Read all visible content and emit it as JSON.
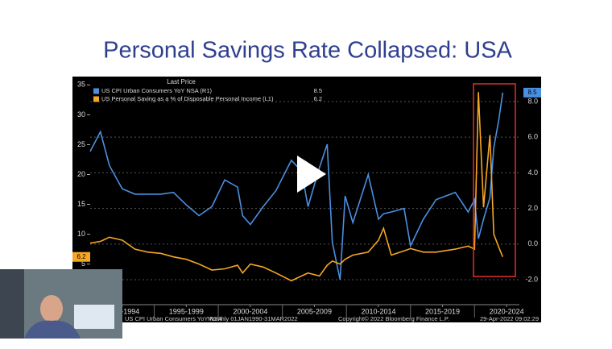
{
  "chart_data": {
    "type": "line",
    "title": "Personal Savings Rate Collapsed: USA",
    "legend_header": "Last Price",
    "footer": [
      "US CPI Urban Consumers YoY NSA",
      "Monthly 01JAN1990-31MAR2022",
      "Copyright© 2022 Bloomberg Finance L.P.",
      "29-Apr-2022 09:02:29"
    ],
    "x": [
      1990.0,
      1990.8,
      1991.5,
      1992.5,
      1993.5,
      1994.5,
      1995.5,
      1996.5,
      1997.5,
      1998.5,
      1999.5,
      2000.5,
      2001.5,
      2001.9,
      2002.5,
      2003.5,
      2004.5,
      2005.7,
      2006.5,
      2007.0,
      2007.9,
      2008.5,
      2008.9,
      2009.5,
      2009.9,
      2010.5,
      2011.7,
      2012.5,
      2012.9,
      2013.5,
      2014.5,
      2015.0,
      2016.0,
      2017.0,
      2018.5,
      2019.5,
      2020.0,
      2020.3,
      2020.7,
      2021.2,
      2021.5,
      2021.9,
      2022.2
    ],
    "series": [
      {
        "name": "US CPI Urban Consumers YoY NSA  (R1)",
        "color": "#4a90e2",
        "axis": "y2",
        "values": [
          5.2,
          6.3,
          4.4,
          3.1,
          2.8,
          2.8,
          2.8,
          2.9,
          2.2,
          1.6,
          2.1,
          3.6,
          3.2,
          1.6,
          1.1,
          2.1,
          3.0,
          4.7,
          4.1,
          2.1,
          4.3,
          5.6,
          0.1,
          -2.0,
          2.7,
          1.2,
          3.9,
          1.4,
          1.7,
          1.8,
          2.0,
          -0.1,
          1.4,
          2.5,
          2.9,
          1.8,
          2.5,
          0.3,
          1.4,
          2.6,
          5.4,
          7.0,
          8.5
        ]
      },
      {
        "name": "US Personal Saving as a % of Disposable Personal Income  (L1)",
        "color": "#f5a623",
        "values": [
          8.5,
          8.8,
          9.5,
          9.0,
          7.5,
          7.0,
          6.8,
          6.2,
          5.8,
          5.0,
          4.0,
          4.2,
          4.8,
          3.5,
          5.0,
          4.5,
          3.5,
          2.2,
          3.0,
          3.5,
          3.0,
          4.8,
          5.5,
          5.0,
          5.8,
          6.5,
          7.0,
          9.0,
          11.0,
          6.5,
          7.2,
          7.6,
          7.0,
          7.0,
          7.5,
          8.0,
          7.5,
          33.8,
          14.5,
          26.6,
          10.0,
          7.8,
          6.2
        ]
      }
    ],
    "xlim": [
      1990,
      2023.5
    ],
    "xticks": [
      {
        "value": 1992.5,
        "label": "1990-1994"
      },
      {
        "value": 1997.5,
        "label": "1995-1999"
      },
      {
        "value": 2002.5,
        "label": "2000-2004"
      },
      {
        "value": 2007.5,
        "label": "2005-2009"
      },
      {
        "value": 2012.5,
        "label": "2010-2014"
      },
      {
        "value": 2017.5,
        "label": "2015-2019"
      },
      {
        "value": 2022.5,
        "label": "2020-2024"
      }
    ],
    "ylim": [
      -1.8,
      36.4
    ],
    "yticks": [
      5,
      10,
      15,
      20,
      25,
      30,
      35
    ],
    "y2lim": [
      -3.4,
      9.4
    ],
    "y2ticks": [
      {
        "value": -2,
        "label": "-2.0"
      },
      {
        "value": 0,
        "label": "0.0"
      },
      {
        "value": 2,
        "label": "2.0"
      },
      {
        "value": 4,
        "label": "4.0"
      },
      {
        "value": 6,
        "label": "6.0"
      },
      {
        "value": 8,
        "label": "8.0"
      }
    ],
    "grid": true
  }
}
